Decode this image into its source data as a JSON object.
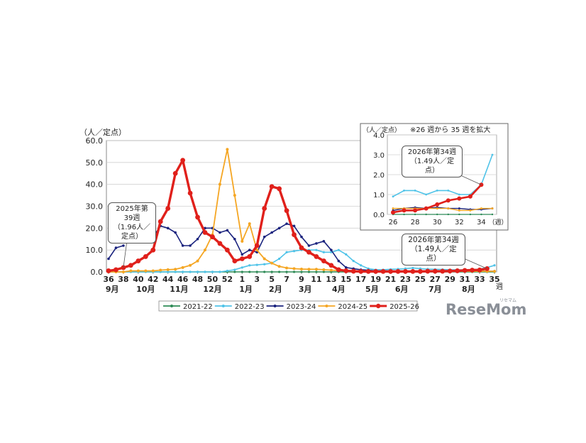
{
  "chart_data": [
    {
      "type": "line",
      "title": "",
      "ylabel": "（人／定点）",
      "xlabel": "（週）",
      "ylim": [
        0,
        60
      ],
      "yticks": [
        "0.0",
        "10.0",
        "20.0",
        "30.0",
        "40.0",
        "50.0",
        "60.0"
      ],
      "x_week_labels": [
        "36",
        "38",
        "40",
        "42",
        "44",
        "46",
        "48",
        "50",
        "52",
        "1",
        "3",
        "5",
        "7",
        "9",
        "11",
        "13",
        "15",
        "17",
        "19",
        "21",
        "23",
        "25",
        "27",
        "29",
        "31",
        "33",
        "35"
      ],
      "x_month_labels": [
        "9月",
        "10月",
        "11月",
        "12月",
        "1月",
        "2月",
        "3月",
        "4月",
        "5月",
        "6月",
        "7月",
        "8月"
      ],
      "x_unit": "週",
      "grid": true,
      "legend_position": "bottom",
      "series": [
        {
          "name": "2021-22",
          "color": "#2e8b57",
          "values": [
            0,
            0,
            0,
            0,
            0,
            0,
            0,
            0,
            0,
            0,
            0,
            0,
            0,
            0,
            0,
            0,
            0,
            0,
            0,
            0,
            0,
            0,
            0,
            0,
            0,
            0,
            0,
            0,
            0,
            0,
            0,
            0,
            0,
            0,
            0,
            0,
            0,
            0,
            0,
            0,
            0,
            0,
            0,
            0,
            0,
            0,
            0,
            0,
            0,
            0,
            0,
            0,
            0
          ]
        },
        {
          "name": "2022-23",
          "color": "#4fc3e8",
          "values": [
            0,
            0,
            0,
            0,
            0,
            0,
            0,
            0,
            0,
            0,
            0,
            0,
            0,
            0,
            0,
            0,
            0.5,
            1,
            2,
            3,
            3.2,
            3.5,
            4,
            6,
            9,
            9.5,
            10,
            10,
            10,
            9,
            9,
            10,
            8,
            5,
            3,
            1.5,
            1,
            1,
            1.2,
            1.3,
            1.5,
            1.8,
            1.5,
            1.3,
            1.2,
            1.1,
            1,
            1,
            0.9,
            1,
            1.3,
            2,
            3
          ]
        },
        {
          "name": "2023-24",
          "color": "#1a237e",
          "values": [
            6,
            11,
            12,
            null,
            16,
            16,
            16,
            21,
            20,
            18,
            12,
            12,
            15,
            20,
            20,
            18,
            19,
            15,
            8,
            10,
            9,
            16,
            18,
            20,
            22,
            21,
            16,
            12,
            13,
            14,
            10,
            5,
            2,
            1.5,
            1,
            0.8,
            0.5,
            0.5,
            0.5,
            0.5,
            0.5,
            0.5,
            0.5,
            0.4,
            0.4,
            0.3,
            0.3,
            0.3,
            0.3,
            0.3,
            0.3,
            0.3,
            0.3
          ]
        },
        {
          "name": "2024-25",
          "color": "#f5a623",
          "values": [
            0,
            0,
            0,
            0.5,
            0.5,
            0.5,
            0.5,
            0.8,
            1,
            1.2,
            2,
            3,
            5,
            10,
            17,
            40,
            56,
            35,
            14,
            22,
            10,
            6,
            4,
            2.5,
            1.8,
            1.5,
            1.3,
            1.2,
            1.2,
            1,
            0.8,
            0.6,
            0.5,
            0.4,
            0.4,
            0.3,
            0.3,
            0.3,
            0.3,
            0.3,
            0.3,
            0.3,
            0.3,
            0.3,
            0.3,
            0.3,
            0.3,
            0.3,
            0.3,
            0.3,
            0.3,
            0.3,
            0.3
          ]
        },
        {
          "name": "2025-26",
          "color": "#e0201b",
          "values": [
            0.5,
            1,
            1.96,
            3,
            5,
            7,
            10,
            23,
            29,
            45,
            51,
            36,
            25,
            18,
            16,
            13,
            10,
            5,
            6,
            7,
            12,
            29,
            39,
            38,
            28,
            17,
            11,
            9,
            7,
            5,
            3,
            1,
            0.5,
            0.3,
            0.2,
            0.2,
            0.2,
            0.2,
            0.2,
            0.2,
            0.2,
            0.2,
            0.2,
            0.3,
            0.3,
            0.3,
            0.4,
            0.5,
            0.7,
            0.8,
            0.9,
            1.49,
            null
          ]
        }
      ],
      "annotations": [
        {
          "lines": [
            "2025年第39週",
            "（1.96人／定点）"
          ]
        },
        {
          "lines": [
            "2026年第34週",
            "（1.49人／定点）"
          ]
        }
      ]
    },
    {
      "type": "line",
      "title": "※26 週から 35 週を拡大",
      "ylabel": "（人／定点）",
      "xlabel": "（週）",
      "ylim": [
        0,
        4
      ],
      "yticks": [
        "0.0",
        "1.0",
        "2.0",
        "3.0",
        "4.0"
      ],
      "categories": [
        "26",
        "27",
        "28",
        "29",
        "30",
        "31",
        "32",
        "33",
        "34",
        "35"
      ],
      "x_tick_labels": [
        "26",
        "28",
        "30",
        "32",
        "34"
      ],
      "grid": true,
      "series": [
        {
          "name": "2021-22",
          "color": "#2e8b57",
          "values": [
            0,
            0,
            0,
            0,
            0,
            0,
            0,
            0,
            0,
            0
          ]
        },
        {
          "name": "2022-23",
          "color": "#4fc3e8",
          "values": [
            0.9,
            1.2,
            1.2,
            1.0,
            1.2,
            1.2,
            1.0,
            1.0,
            1.5,
            3.0
          ]
        },
        {
          "name": "2023-24",
          "color": "#1a237e",
          "values": [
            0.2,
            0.3,
            0.35,
            0.3,
            0.35,
            0.3,
            0.3,
            0.25,
            0.25,
            0.3
          ]
        },
        {
          "name": "2024-25",
          "color": "#f5a623",
          "values": [
            0.3,
            0.3,
            0.3,
            0.3,
            0.3,
            0.3,
            0.2,
            0.2,
            0.3,
            0.3
          ]
        },
        {
          "name": "2025-26",
          "color": "#e0201b",
          "values": [
            0.1,
            0.2,
            0.2,
            0.3,
            0.5,
            0.7,
            0.8,
            0.9,
            1.49,
            null
          ]
        }
      ],
      "annotations": [
        {
          "lines": [
            "2026年第34週",
            "（1.49人／定点）"
          ]
        }
      ]
    }
  ],
  "legend": {
    "items": [
      "2021-22",
      "2022-23",
      "2023-24",
      "2024-25",
      "2025-26"
    ]
  },
  "watermark": {
    "logo": "ReseMom",
    "kana": "リセマム"
  }
}
